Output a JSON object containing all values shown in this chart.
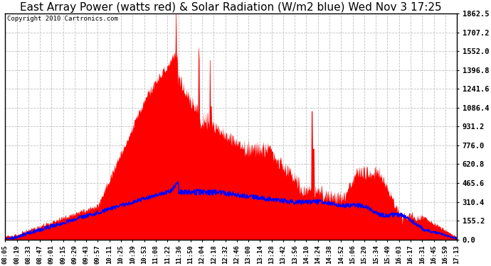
{
  "title": "East Array Power (watts red) & Solar Radiation (W/m2 blue) Wed Nov 3 17:25",
  "copyright": "Copyright 2010 Cartronics.com",
  "ylabel_right_ticks": [
    0.0,
    155.2,
    310.4,
    465.6,
    620.8,
    776.0,
    931.2,
    1086.4,
    1241.6,
    1396.8,
    1552.0,
    1707.2,
    1862.5
  ],
  "ymax": 1862.5,
  "ymin": 0.0,
  "background_color": "#ffffff",
  "plot_bg_color": "#ffffff",
  "red_color": "#ff0000",
  "blue_color": "#0000ff",
  "grid_color": "#c0c0c0",
  "title_fontsize": 11,
  "x_labels": [
    "08:05",
    "08:19",
    "08:33",
    "08:47",
    "09:01",
    "09:15",
    "09:29",
    "09:43",
    "09:57",
    "10:11",
    "10:25",
    "10:39",
    "10:53",
    "11:08",
    "11:22",
    "11:36",
    "11:50",
    "12:04",
    "12:18",
    "12:32",
    "12:46",
    "13:00",
    "13:14",
    "13:28",
    "13:42",
    "13:56",
    "14:10",
    "14:24",
    "14:38",
    "14:52",
    "15:06",
    "15:20",
    "15:34",
    "15:49",
    "16:03",
    "16:17",
    "16:31",
    "16:45",
    "16:59",
    "17:13"
  ]
}
